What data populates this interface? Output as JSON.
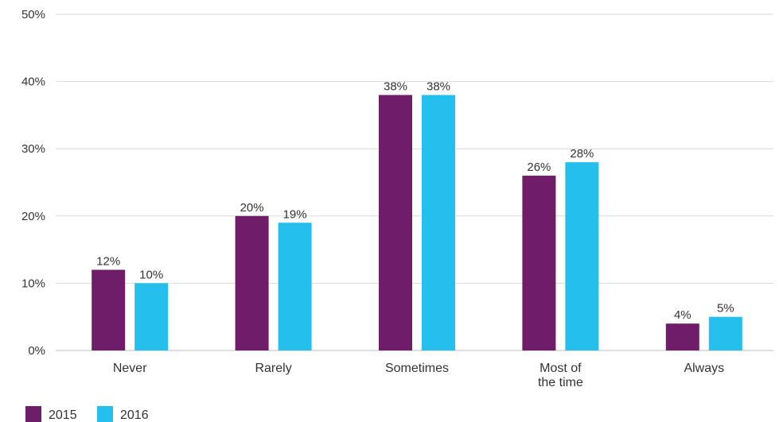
{
  "chart_data": {
    "type": "bar",
    "categories": [
      [
        "Never"
      ],
      [
        "Rarely"
      ],
      [
        "Sometimes"
      ],
      [
        "Most of",
        "the time"
      ],
      [
        "Always"
      ]
    ],
    "series": [
      {
        "name": "2015",
        "color": "#6f1d69",
        "values": [
          12,
          20,
          38,
          26,
          4
        ],
        "labels": [
          "12%",
          "20%",
          "38%",
          "26%",
          "4%"
        ]
      },
      {
        "name": "2016",
        "color": "#25bfed",
        "values": [
          10,
          19,
          38,
          28,
          5
        ],
        "labels": [
          "10%",
          "19%",
          "38%",
          "28%",
          "5%"
        ]
      }
    ],
    "y_ticks": [
      {
        "value": 0,
        "label": "0%"
      },
      {
        "value": 10,
        "label": "10%"
      },
      {
        "value": 20,
        "label": "20%"
      },
      {
        "value": 30,
        "label": "30%"
      },
      {
        "value": 40,
        "label": "40%"
      },
      {
        "value": 50,
        "label": "50%"
      }
    ],
    "ylim": [
      0,
      50
    ],
    "grid": true,
    "legend_position": "bottom-left"
  }
}
